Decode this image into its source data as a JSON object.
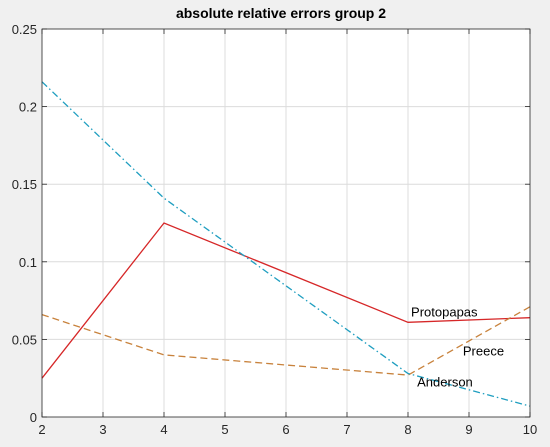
{
  "chart_data": {
    "type": "line",
    "title": "absolute relative errors group 2",
    "xlabel": "",
    "ylabel": "",
    "xlim": [
      2,
      10
    ],
    "ylim": [
      0,
      0.25
    ],
    "grid": true,
    "x_ticks": [
      "2",
      "3",
      "4",
      "5",
      "6",
      "7",
      "8",
      "9",
      "10"
    ],
    "y_ticks": [
      "0",
      "0.05",
      "0.1",
      "0.15",
      "0.2",
      "0.25"
    ],
    "series": [
      {
        "name": "Protopapas",
        "color": "#d62728",
        "style": "solid",
        "x": [
          2,
          4,
          8,
          10
        ],
        "y": [
          0.025,
          0.125,
          0.061,
          0.064
        ]
      },
      {
        "name": "Preece",
        "color": "#c8823c",
        "style": "dashed",
        "x": [
          2,
          4,
          8,
          10
        ],
        "y": [
          0.066,
          0.04,
          0.027,
          0.071
        ]
      },
      {
        "name": "Anderson",
        "color": "#1f9ec0",
        "style": "dashdot",
        "x": [
          2,
          4,
          8,
          10
        ],
        "y": [
          0.216,
          0.141,
          0.028,
          0.007
        ]
      }
    ],
    "annotations": [
      {
        "text": "Protopapas",
        "x": 8.05,
        "y": 0.068
      },
      {
        "text": "Preece",
        "x": 8.9,
        "y": 0.043
      },
      {
        "text": "Anderson",
        "x": 8.15,
        "y": 0.023
      }
    ]
  }
}
